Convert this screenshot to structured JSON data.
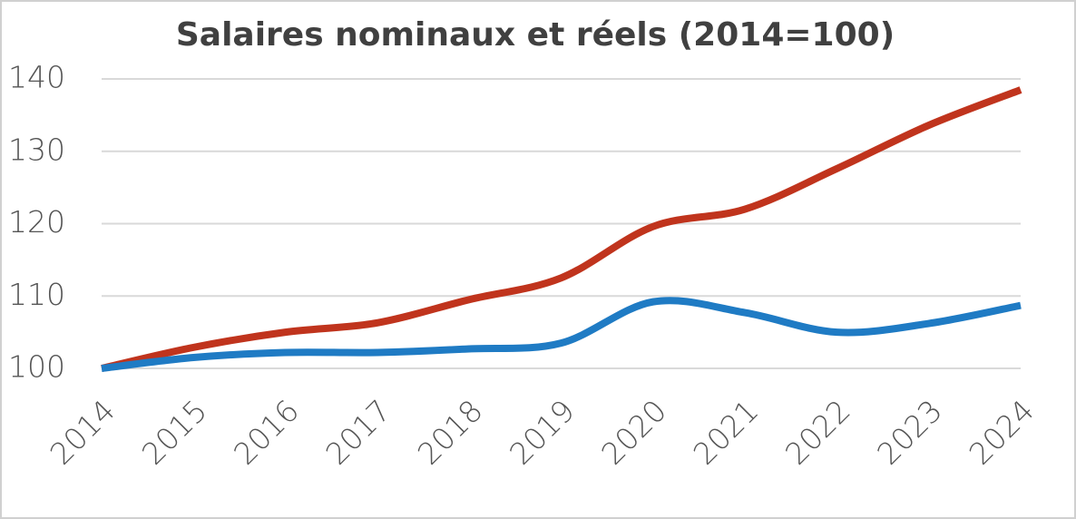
{
  "chart_data": {
    "type": "line",
    "title": "Salaires nominaux et réels (2014=100)",
    "x": [
      2014,
      2015,
      2016,
      2017,
      2018,
      2019,
      2020,
      2021,
      2022,
      2023,
      2024
    ],
    "xlim": [
      2014,
      2024
    ],
    "series": [
      {
        "color": "#c0341d",
        "values": [
          100,
          102.9,
          105,
          106.3,
          109.5,
          112.5,
          119.6,
          122,
          127.6,
          133.6,
          138.5
        ]
      },
      {
        "color": "#1f7bc4",
        "values": [
          100,
          101.5,
          102.2,
          102.2,
          102.7,
          103.5,
          109.2,
          107.7,
          105,
          106.2,
          108.7
        ]
      }
    ],
    "ylim": [
      100,
      140
    ],
    "yticks": [
      100,
      110,
      120,
      130,
      140
    ],
    "grid": true
  }
}
